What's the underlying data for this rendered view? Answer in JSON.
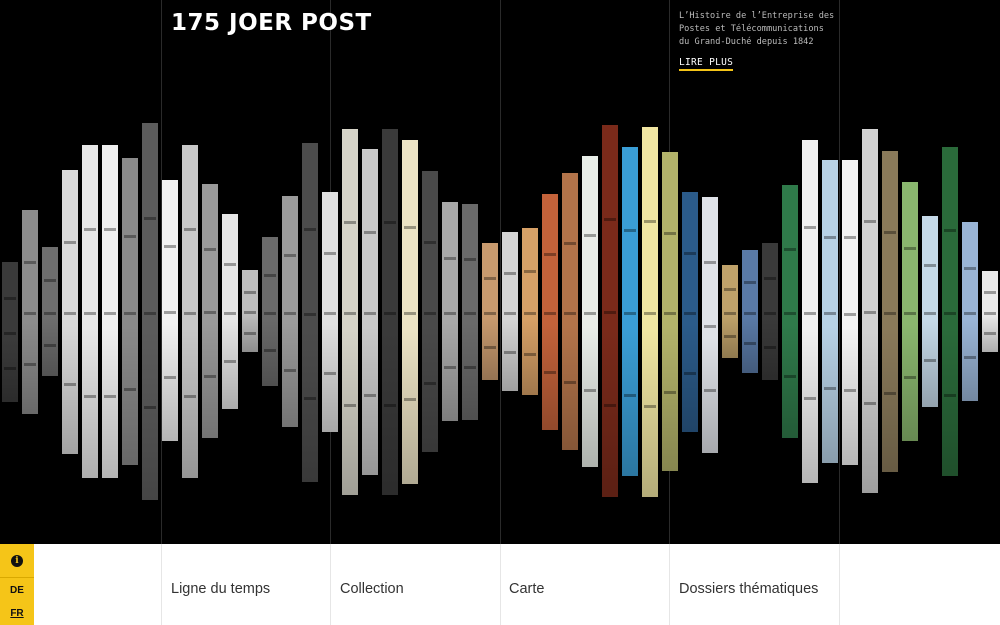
{
  "header": {
    "title": "175 JOER POST",
    "description": "L’Histoire de l’Entreprise des Postes et Télécommunications du Grand-Duché depuis 1842",
    "read_more": "LIRE PLUS",
    "accent_color": "#f5c518"
  },
  "strip_gallery": {
    "strip_colors": [
      "#3a3a3a",
      "#8c8c8c",
      "#6e6e6e",
      "#d9d9d9",
      "#e8e8e8",
      "#f0f0f0",
      "#8a8a8a",
      "#5c5c5c",
      "#f2f2f2",
      "#c8c8c8",
      "#9a9a9a",
      "#e6e6e6",
      "#bdbdbd",
      "#6a6a6a",
      "#9b9b9b",
      "#4c4c4c",
      "#e0e0e0",
      "#d6d4c8",
      "#c9c9c9",
      "#3a3a3a",
      "#ece3c4",
      "#4a4a4a",
      "#a8a8a8",
      "#6a6a6a",
      "#c89a6e",
      "#d5d5d5",
      "#d6a066",
      "#c3623a",
      "#b3744a",
      "#e9eee8",
      "#d8e6d6",
      "#3a9ed6",
      "#f1f1f1",
      "#7a2a1a",
      "#f1e6a2",
      "#b3b36a",
      "#2b5b8a",
      "#dfe2e8",
      "#bfa26a",
      "#5a7aa6",
      "#3a3a3a",
      "#2f7a4a",
      "#f2f2f2",
      "#b8d2e6",
      "#f4f4f4",
      "#2e3a2e",
      "#8a7a5a",
      "#8ab76e",
      "#8a2a2a",
      "#2a6a3a",
      "#9ab5d6",
      "#e9e9e9",
      "#d3d3d3",
      "#c5d9e8"
    ]
  },
  "footer": {
    "info_icon": "info-icon",
    "lang_de": "DE",
    "lang_fr": "FR",
    "nav": {
      "timeline": "Ligne du temps",
      "collection": "Collection",
      "map": "Carte",
      "dossiers": "Dossiers thématiques"
    }
  }
}
